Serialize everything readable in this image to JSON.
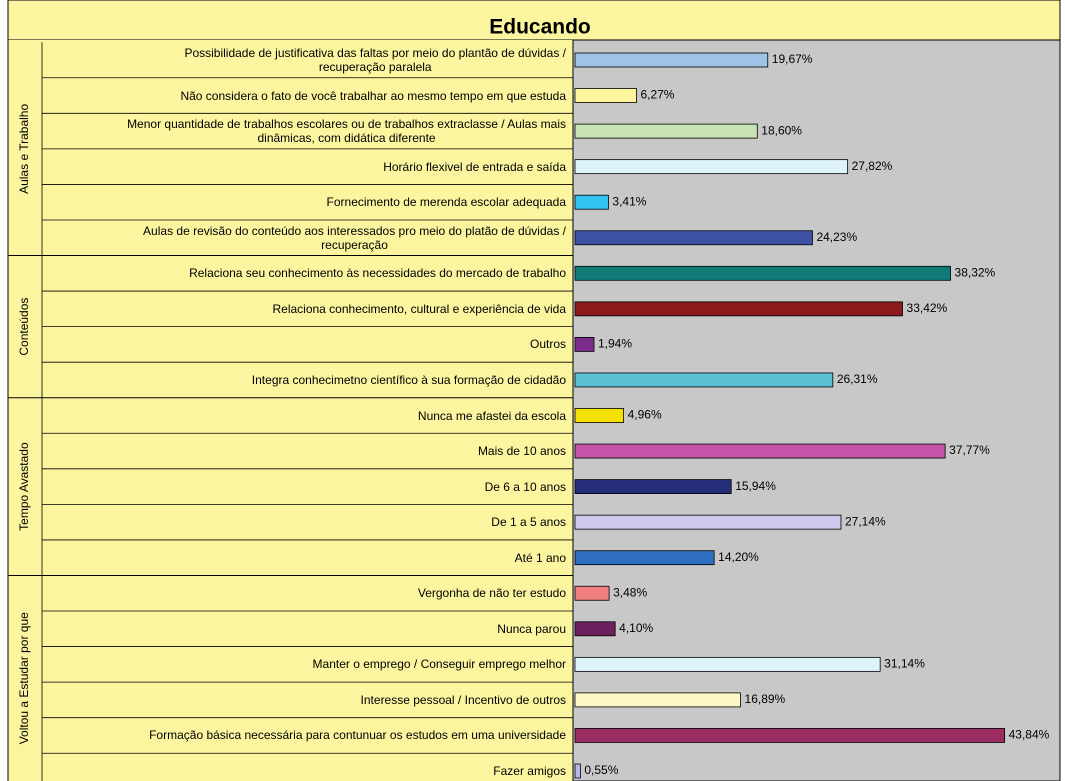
{
  "chart_data": {
    "type": "bar",
    "title": "Educando",
    "groups": [
      {
        "name": "Aulas e Trabalho",
        "categories": [
          "Possibilidade de justificativa das faltas por meio do plantão de dúvidas /\nrecuperação paralela",
          "Não considera o fato de você trabalhar ao mesmo tempo em que estuda",
          "Menor quantidade de trabalhos escolares ou de trabalhos extraclasse / Aulas mais\ndinâmicas, com didática diferente",
          "Horário flexivel de entrada e saída",
          "Fornecimento de merenda escolar adequada",
          "Aulas de revisão do conteúdo aos interessados pro meio do platão de dúvidas /\nrecuperação"
        ],
        "values": [
          19.67,
          6.27,
          18.6,
          27.82,
          3.41,
          24.23
        ],
        "value_labels": [
          "19,67%",
          "6,27%",
          "18,60%",
          "27,82%",
          "3,41%",
          "24,23%"
        ],
        "colors": [
          "#9dc3e6",
          "#fff59d",
          "#c9e4b4",
          "#dff3fb",
          "#33c3f0",
          "#3f51a5"
        ]
      },
      {
        "name": "Conteúdos",
        "categories": [
          "Relaciona seu conhecimento às necessidades do mercado de trabalho",
          "Relaciona conhecimento, cultural e experiência de vida",
          "Outros",
          "Integra conhecimetno científico à sua formação de cidadão"
        ],
        "values": [
          38.32,
          33.42,
          1.94,
          26.31
        ],
        "value_labels": [
          "38,32%",
          "33,42%",
          "1,94%",
          "26,31%"
        ],
        "colors": [
          "#0f7b76",
          "#8b1a1a",
          "#7b2c8a",
          "#5bc2d6"
        ]
      },
      {
        "name": "Tempo Avastado",
        "categories": [
          "Nunca me afastei da escola",
          "Mais de 10 anos",
          "De 6 a 10 anos",
          "De 1 a 5 anos",
          "Até 1 ano"
        ],
        "values": [
          4.96,
          37.77,
          15.94,
          27.14,
          14.2
        ],
        "value_labels": [
          "4,96%",
          "37,77%",
          "15,94%",
          "27,14%",
          "14,20%"
        ],
        "colors": [
          "#f5e100",
          "#c454a8",
          "#262d7a",
          "#cdc8ec",
          "#2f6fc0"
        ]
      },
      {
        "name": "Voltou a Estudar por que",
        "categories": [
          "Vergonha de não ter estudo",
          "Nunca parou",
          "Manter o emprego / Conseguir emprego melhor",
          "Interesse pessoal / Incentivo de outros",
          "Formação básica necessária para contunuar os estudos em uma universidade",
          "Fazer amigos"
        ],
        "values": [
          3.48,
          4.1,
          31.14,
          16.89,
          43.84,
          0.55
        ],
        "value_labels": [
          "3,48%",
          "4,10%",
          "31,14%",
          "16,89%",
          "43,84%",
          "0,55%"
        ],
        "colors": [
          "#f08080",
          "#6b1f5e",
          "#dff3fb",
          "#fff6c8",
          "#9b2d63",
          "#b8b8e8"
        ]
      }
    ]
  }
}
